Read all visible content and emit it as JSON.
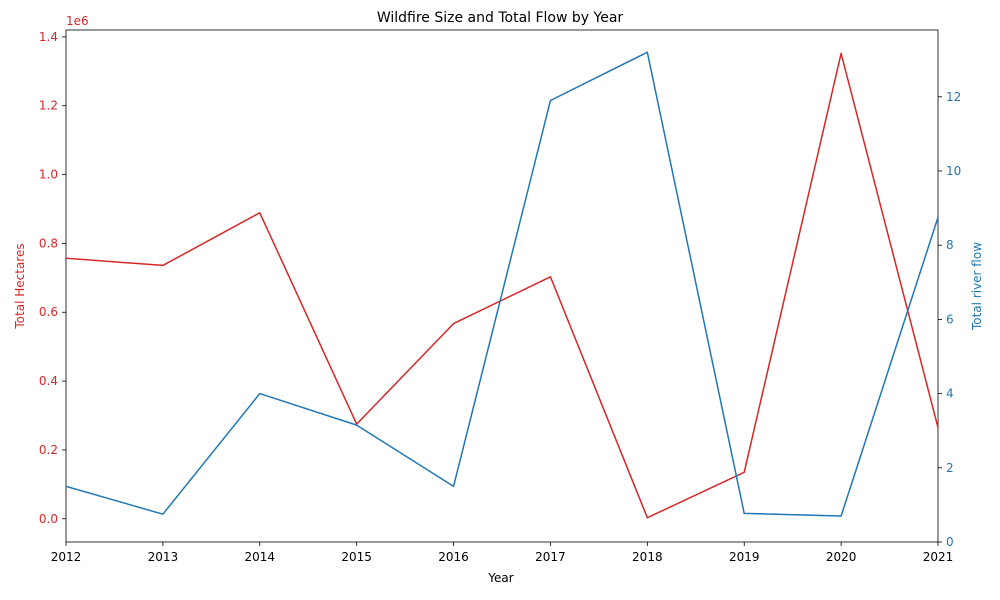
{
  "chart_data": {
    "type": "line",
    "title": "Wildfire Size and Total Flow by Year",
    "xlabel": "Year",
    "x": [
      2012,
      2013,
      2014,
      2015,
      2016,
      2017,
      2018,
      2019,
      2020,
      2021
    ],
    "xlim": [
      2012,
      2021
    ],
    "x_ticks": [
      "2012",
      "2013",
      "2014",
      "2015",
      "2016",
      "2017",
      "2018",
      "2019",
      "2020",
      "2021"
    ],
    "left_axis": {
      "label": "Total Hectares",
      "color": "#d62728",
      "ylim": [
        -0.0675,
        1.42
      ],
      "multiplier": "1e6",
      "ticks": [
        0.0,
        0.2,
        0.4,
        0.6,
        0.8,
        1.0,
        1.2,
        1.4
      ],
      "tick_labels": [
        "0.0",
        "0.2",
        "0.4",
        "0.6",
        "0.8",
        "1.0",
        "1.2",
        "1.4"
      ]
    },
    "right_axis": {
      "label": "Total river flow",
      "color": "#1f77b4",
      "ylim": [
        0,
        13.8
      ],
      "ticks": [
        0,
        2,
        4,
        6,
        8,
        10,
        12
      ],
      "tick_labels": [
        "0",
        "2",
        "4",
        "6",
        "8",
        "10",
        "12"
      ]
    },
    "series": [
      {
        "axis": "left",
        "color": "#d62728",
        "values": [
          0.757,
          0.736,
          0.889,
          0.275,
          0.567,
          0.703,
          0.003,
          0.135,
          1.352,
          0.265
        ]
      },
      {
        "axis": "right",
        "color": "#1f77b4",
        "values": [
          1.5,
          0.75,
          4.0,
          3.15,
          1.5,
          11.9,
          13.2,
          0.77,
          0.7,
          8.75
        ]
      }
    ],
    "grid": false
  }
}
